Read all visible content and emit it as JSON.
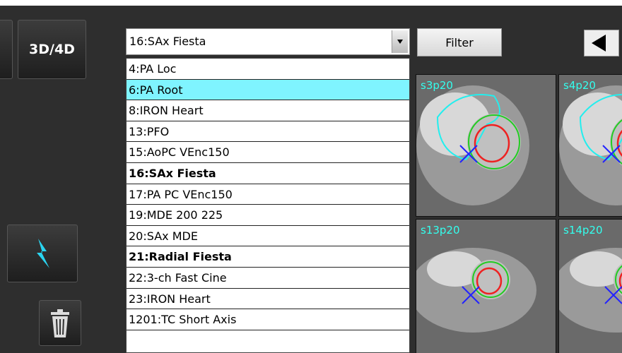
{
  "buttons": {
    "view": "3D/4D",
    "filter": "Filter"
  },
  "dropdown": {
    "selected": "16:SAx Fiesta"
  },
  "list": {
    "items": [
      {
        "text": "4:PA Loc"
      },
      {
        "text": "6:PA Root",
        "highlighted": true
      },
      {
        "text": "8:IRON Heart"
      },
      {
        "text": "13:PFO"
      },
      {
        "text": "15:AoPC VEnc150"
      },
      {
        "text": "16:SAx Fiesta",
        "bold": true
      },
      {
        "text": "17:PA PC VEnc150"
      },
      {
        "text": "19:MDE 200 225"
      },
      {
        "text": "20:SAx MDE"
      },
      {
        "text": "21:Radial Fiesta",
        "bold": true
      },
      {
        "text": "22:3-ch Fast Cine"
      },
      {
        "text": "23:IRON Heart"
      },
      {
        "text": "1201:TC Short Axis"
      }
    ]
  },
  "thumbnails": [
    {
      "label": "s3p20"
    },
    {
      "label": "s4p20"
    },
    {
      "label": "s13p20"
    },
    {
      "label": "s14p20"
    }
  ]
}
